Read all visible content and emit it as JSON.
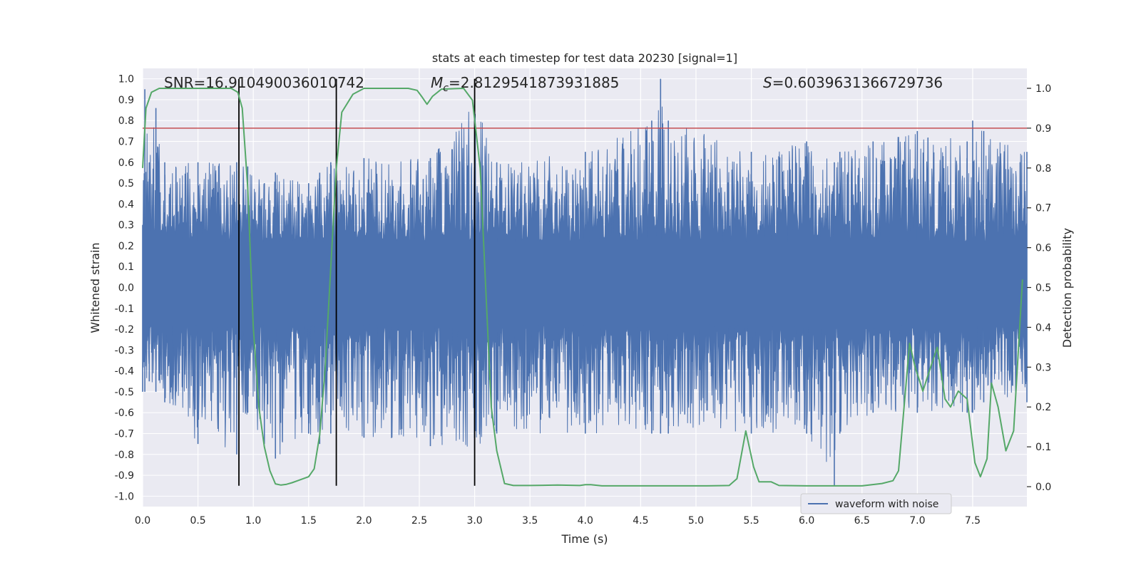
{
  "chart_data": {
    "type": "line",
    "title": "stats at each timestep for test data 20230 [signal=1]",
    "xlabel": "Time (s)",
    "ylabel_left": "Whitened strain",
    "ylabel_right": "Detection probability",
    "xlim": [
      0.0,
      7.99
    ],
    "ylim_left": [
      -1.05,
      1.05
    ],
    "ylim_right": [
      -0.05,
      1.05
    ],
    "grid": true,
    "x_ticks": [
      "0.0",
      "0.5",
      "1.0",
      "1.5",
      "2.0",
      "2.5",
      "3.0",
      "3.5",
      "4.0",
      "4.5",
      "5.0",
      "5.5",
      "6.0",
      "6.5",
      "7.0",
      "7.5"
    ],
    "y_ticks_left": [
      "1.0",
      "0.9",
      "0.8",
      "0.7",
      "0.6",
      "0.5",
      "0.4",
      "0.3",
      "0.2",
      "0.1",
      "0.0",
      "-0.1",
      "-0.2",
      "-0.3",
      "-0.4",
      "-0.5",
      "-0.6",
      "-0.7",
      "-0.8",
      "-0.9",
      "-1.0"
    ],
    "y_ticks_right": [
      "1.0",
      "0.9",
      "0.8",
      "0.7",
      "0.6",
      "0.5",
      "0.4",
      "0.3",
      "0.2",
      "0.1",
      "0.0"
    ],
    "threshold": {
      "axis": "right",
      "value": 0.9,
      "color": "#c44e52"
    },
    "vlines": [
      0.87,
      1.75,
      3.0
    ],
    "vline_range_left": [
      -0.95,
      1.0
    ],
    "annotations": {
      "snr": "SNR=16.910490036010742",
      "mc_prefix": "M",
      "mc_sub": "c",
      "mc_value": "=2.8129541873931885",
      "s_prefix": "S",
      "s_value": "=0.6039631366729736"
    },
    "legend": {
      "label": "waveform with noise",
      "position": "bottom-right"
    },
    "colors": {
      "strain": "#4c72b0",
      "probability": "#55a868",
      "vline": "#000000",
      "background": "#eaeaf2",
      "grid": "#ffffff"
    },
    "strain_envelope": {
      "t": [
        0.0,
        0.02,
        0.06,
        0.12,
        0.2,
        0.5,
        0.85,
        0.95,
        1.1,
        1.2,
        1.5,
        1.6,
        1.7,
        2.0,
        2.6,
        3.0,
        3.2,
        4.0,
        4.6,
        4.68,
        4.75,
        5.5,
        6.0,
        6.25,
        6.3,
        6.6,
        7.0,
        7.45,
        7.5,
        7.6,
        7.99
      ],
      "upper": [
        0.3,
        0.95,
        0.6,
        0.86,
        0.6,
        0.6,
        0.6,
        0.58,
        0.5,
        0.55,
        0.5,
        0.55,
        0.6,
        0.62,
        0.62,
        0.9,
        0.6,
        0.65,
        0.8,
        1.0,
        0.8,
        0.65,
        0.7,
        0.6,
        0.65,
        0.7,
        0.75,
        0.7,
        0.8,
        0.75,
        0.65
      ],
      "lower": [
        -0.5,
        -0.5,
        -0.45,
        -0.5,
        -0.55,
        -0.75,
        -0.8,
        -0.6,
        -0.75,
        -0.82,
        -0.7,
        -0.75,
        -0.7,
        -0.72,
        -0.76,
        -0.78,
        -0.7,
        -0.7,
        -0.7,
        -0.7,
        -0.7,
        -0.7,
        -0.7,
        -0.95,
        -0.7,
        -0.6,
        -0.6,
        -0.6,
        -0.6,
        -0.55,
        -0.55
      ],
      "seed": 20230
    },
    "probability": {
      "t": [
        0.0,
        0.03,
        0.08,
        0.15,
        0.3,
        0.5,
        0.7,
        0.8,
        0.86,
        0.9,
        0.95,
        1.0,
        1.05,
        1.1,
        1.15,
        1.2,
        1.25,
        1.3,
        1.35,
        1.4,
        1.5,
        1.55,
        1.6,
        1.65,
        1.7,
        1.75,
        1.8,
        1.9,
        2.0,
        2.2,
        2.4,
        2.48,
        2.52,
        2.57,
        2.62,
        2.7,
        2.9,
        2.98,
        3.05,
        3.1,
        3.15,
        3.2,
        3.27,
        3.35,
        3.5,
        3.75,
        3.95,
        4.0,
        4.05,
        4.15,
        4.3,
        4.5,
        4.8,
        5.1,
        5.3,
        5.37,
        5.45,
        5.52,
        5.57,
        5.68,
        5.75,
        6.0,
        6.3,
        6.5,
        6.68,
        6.78,
        6.83,
        6.93,
        6.98,
        7.05,
        7.12,
        7.18,
        7.25,
        7.3,
        7.37,
        7.45,
        7.52,
        7.57,
        7.63,
        7.67,
        7.73,
        7.8,
        7.87,
        7.95
      ],
      "p": [
        0.8,
        0.95,
        0.99,
        1.0,
        1.0,
        1.0,
        1.0,
        1.0,
        0.99,
        0.95,
        0.75,
        0.4,
        0.2,
        0.1,
        0.04,
        0.007,
        0.004,
        0.006,
        0.01,
        0.015,
        0.025,
        0.045,
        0.13,
        0.3,
        0.55,
        0.8,
        0.94,
        0.985,
        1.0,
        1.0,
        1.0,
        0.995,
        0.98,
        0.96,
        0.98,
        0.998,
        1.0,
        0.97,
        0.8,
        0.5,
        0.2,
        0.09,
        0.008,
        0.003,
        0.003,
        0.004,
        0.003,
        0.005,
        0.005,
        0.002,
        0.002,
        0.002,
        0.002,
        0.002,
        0.003,
        0.02,
        0.14,
        0.05,
        0.012,
        0.012,
        0.003,
        0.002,
        0.002,
        0.002,
        0.008,
        0.015,
        0.04,
        0.36,
        0.3,
        0.24,
        0.3,
        0.35,
        0.22,
        0.2,
        0.24,
        0.22,
        0.06,
        0.025,
        0.07,
        0.26,
        0.2,
        0.09,
        0.14,
        0.52
      ]
    }
  }
}
